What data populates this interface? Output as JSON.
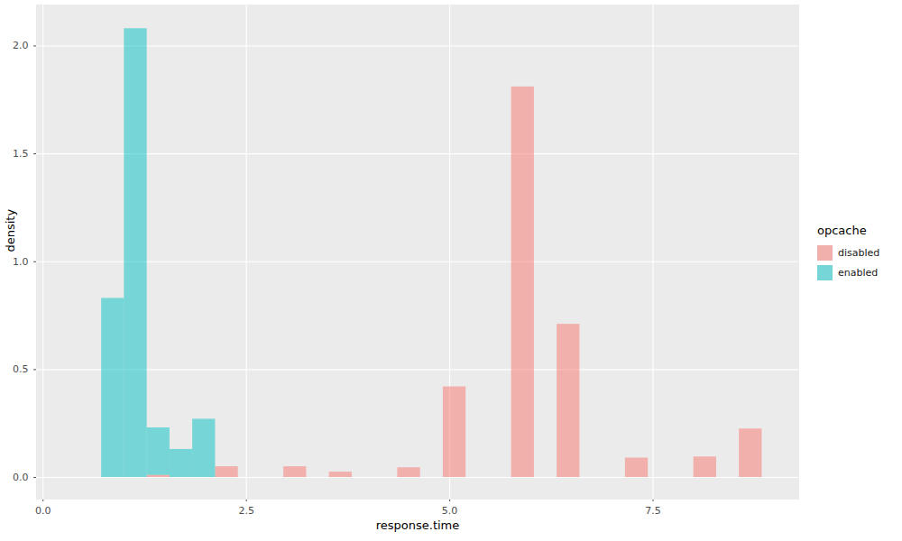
{
  "chart_data": {
    "type": "histogram",
    "x_label": "response.time",
    "y_label": "density",
    "legend_title": "opcache",
    "bins": [
      0.72,
      1.0,
      1.28,
      1.56,
      1.84,
      2.12,
      2.4,
      2.68,
      2.96,
      3.24,
      3.52,
      3.8,
      4.08,
      4.36,
      4.64,
      4.92,
      5.2,
      5.48,
      5.76,
      6.04,
      6.32,
      6.6,
      6.88,
      7.16,
      7.44,
      7.72,
      8.0,
      8.28,
      8.56,
      8.84
    ],
    "series": [
      {
        "name": "disabled",
        "color": "#F8766D",
        "values": [
          0,
          0,
          0.01,
          0,
          0,
          0.05,
          0,
          0,
          0.05,
          0,
          0.025,
          0,
          0,
          0.045,
          0,
          0.42,
          0,
          0,
          1.81,
          0,
          0.71,
          0,
          0,
          0.09,
          0,
          0,
          0.095,
          0,
          0.225
        ]
      },
      {
        "name": "enabled",
        "color": "#00BFC4",
        "values": [
          0.83,
          2.08,
          0.22,
          0.13,
          0.27,
          0,
          0,
          0,
          0,
          0,
          0,
          0,
          0,
          0,
          0,
          0,
          0,
          0,
          0,
          0,
          0,
          0,
          0,
          0,
          0,
          0,
          0,
          0,
          0
        ]
      }
    ],
    "xlim": [
      -0.08,
      9.29
    ],
    "xticks": [
      {
        "value": 0,
        "label": "0.0"
      },
      {
        "value": 2.5,
        "label": "2.5"
      },
      {
        "value": 5,
        "label": "5.0"
      },
      {
        "value": 7.5,
        "label": "7.5"
      }
    ],
    "ylim": [
      -0.1,
      2.19
    ],
    "yticks": [
      {
        "value": 0,
        "label": "0.0"
      },
      {
        "value": 0.5,
        "label": "0.5"
      },
      {
        "value": 1,
        "label": "1.0"
      },
      {
        "value": 1.5,
        "label": "1.5"
      },
      {
        "value": 2,
        "label": "2.0"
      }
    ],
    "grid": true,
    "legend": "right"
  }
}
